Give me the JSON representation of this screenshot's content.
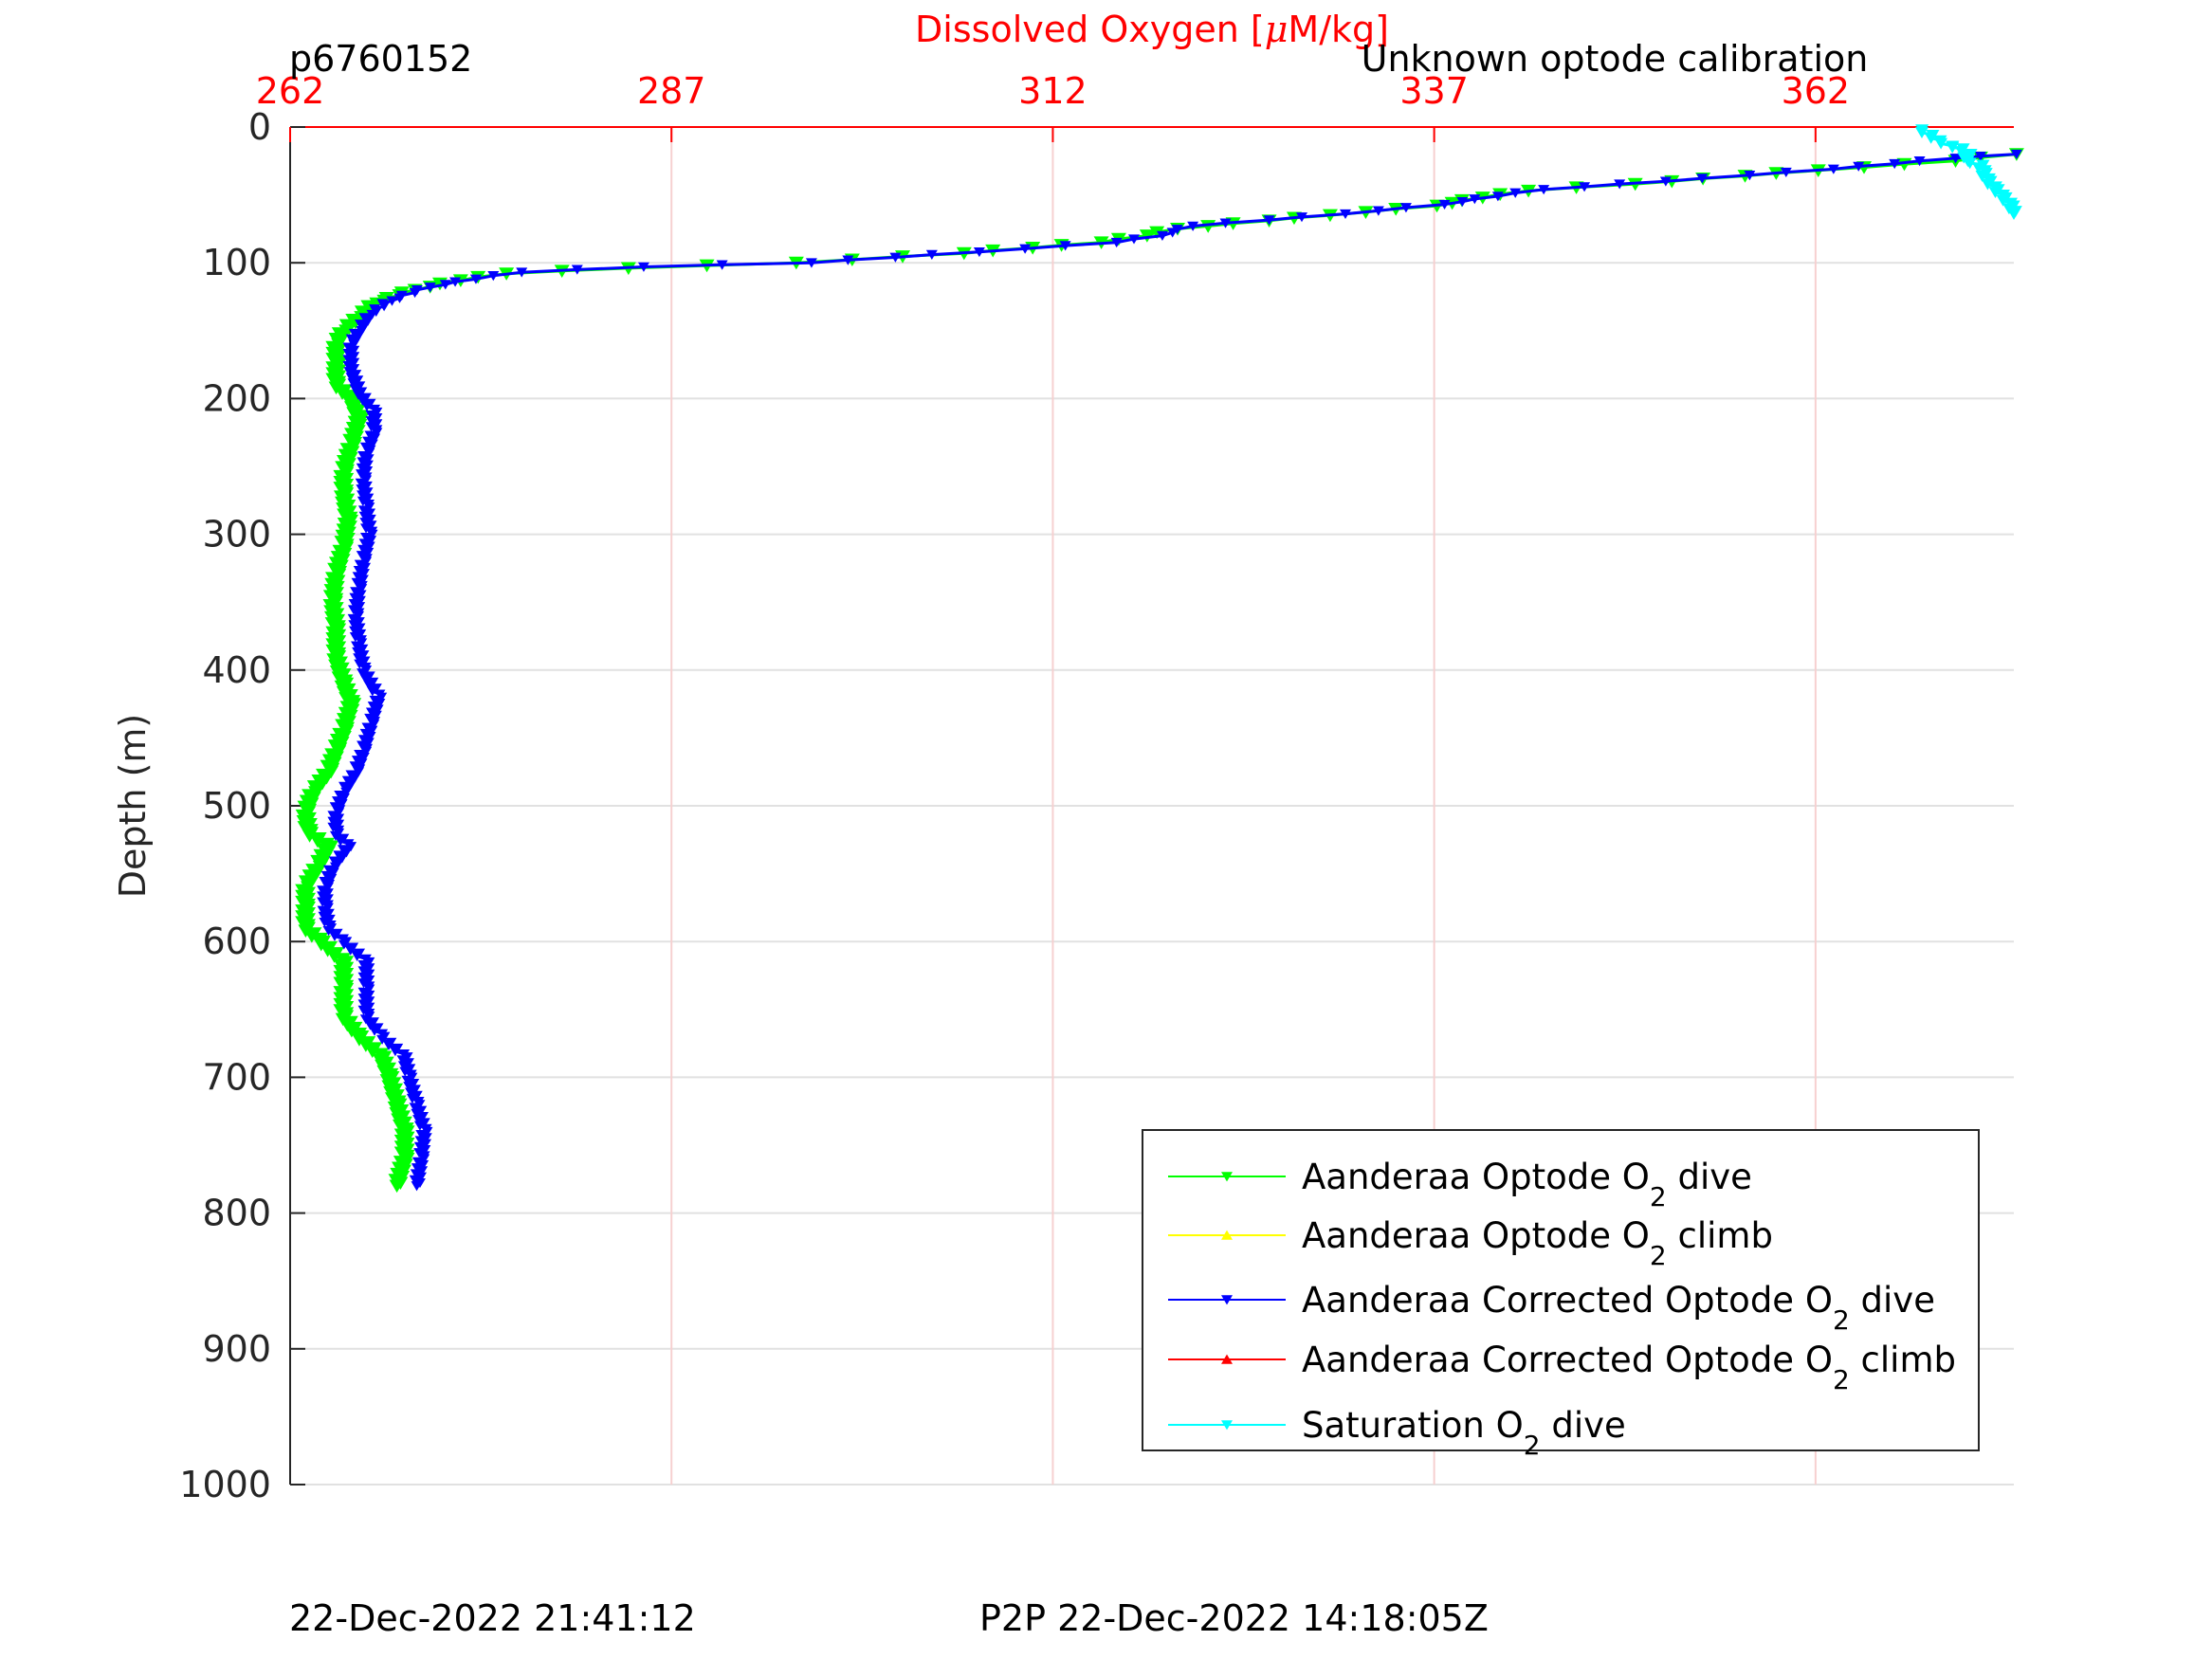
{
  "figure": {
    "profile_id": "p6760152",
    "calibration_note": "Unknown optode calibration",
    "footer_left": "22-Dec-2022 21:41:12",
    "footer_right": "P2P 22-Dec-2022 14:18:05Z"
  },
  "chart_data": {
    "type": "line",
    "title": "",
    "xlabel_prefix": "Dissolved Oxygen [",
    "xlabel_mu": "μ",
    "xlabel_suffix": "M/kg]",
    "ylabel": "Depth (m)",
    "xlim": [
      262,
      375
    ],
    "ylim": [
      0,
      1000
    ],
    "y_reversed": true,
    "x_axis_position": "top",
    "x_axis_color": "#ff0000",
    "xticks": [
      262,
      287,
      312,
      337,
      362
    ],
    "xtick_labels": [
      "262",
      "287",
      "312",
      "337",
      "362"
    ],
    "yticks": [
      0,
      100,
      200,
      300,
      400,
      500,
      600,
      700,
      800,
      900,
      1000
    ],
    "ytick_labels": [
      "0",
      "100",
      "200",
      "300",
      "400",
      "500",
      "600",
      "700",
      "800",
      "900",
      "1000"
    ],
    "grid": true,
    "legend_position": "bottom-right",
    "legend": [
      {
        "pre": "Aanderaa Optode O",
        "sub": "2",
        "post": " dive",
        "color": "#00ff00",
        "marker": "down"
      },
      {
        "pre": "Aanderaa Optode O",
        "sub": "2",
        "post": " climb",
        "color": "#ffff00",
        "marker": "up"
      },
      {
        "pre": "Aanderaa Corrected Optode O",
        "sub": "2",
        "post": " dive",
        "color": "#0000ff",
        "marker": "down"
      },
      {
        "pre": "Aanderaa Corrected Optode O",
        "sub": "2",
        "post": " climb",
        "color": "#ff0000",
        "marker": "up"
      },
      {
        "pre": "Saturation O",
        "sub": "2",
        "post": " dive",
        "color": "#00ffff",
        "marker": "down"
      }
    ],
    "series": [
      {
        "name": "Aanderaa Optode O2 dive",
        "color": "#00ff00",
        "marker": "down",
        "points": [
          [
            375,
            20
          ],
          [
            371,
            25
          ],
          [
            362,
            32
          ],
          [
            350,
            42
          ],
          [
            343,
            47
          ],
          [
            340,
            52
          ],
          [
            337,
            58
          ],
          [
            330,
            65
          ],
          [
            320,
            75
          ],
          [
            318,
            80
          ],
          [
            315,
            85
          ],
          [
            306,
            93
          ],
          [
            295,
            100
          ],
          [
            284,
            104
          ],
          [
            276,
            108
          ],
          [
            273,
            113
          ],
          [
            270,
            120
          ],
          [
            267.5,
            130
          ],
          [
            266.5,
            140
          ],
          [
            265.5,
            150
          ],
          [
            265,
            160
          ],
          [
            265,
            175
          ],
          [
            265,
            190
          ],
          [
            266,
            200
          ],
          [
            266.5,
            215
          ],
          [
            266,
            235
          ],
          [
            265.5,
            255
          ],
          [
            265.5,
            270
          ],
          [
            265.8,
            290
          ],
          [
            265.5,
            310
          ],
          [
            265,
            330
          ],
          [
            264.8,
            350
          ],
          [
            265,
            370
          ],
          [
            265,
            390
          ],
          [
            265.5,
            410
          ],
          [
            266,
            425
          ],
          [
            265.5,
            445
          ],
          [
            265,
            460
          ],
          [
            264.5,
            475
          ],
          [
            263.5,
            490
          ],
          [
            263,
            505
          ],
          [
            263.2,
            520
          ],
          [
            264.5,
            530
          ],
          [
            263.8,
            545
          ],
          [
            263,
            560
          ],
          [
            263,
            575
          ],
          [
            263,
            590
          ],
          [
            264,
            600
          ],
          [
            265.5,
            615
          ],
          [
            265.5,
            635
          ],
          [
            265.5,
            655
          ],
          [
            266.5,
            670
          ],
          [
            268,
            685
          ],
          [
            268.5,
            700
          ],
          [
            269,
            720
          ],
          [
            269.5,
            740
          ],
          [
            269.5,
            760
          ],
          [
            269,
            780
          ]
        ]
      },
      {
        "name": "Aanderaa Optode O2 climb",
        "color": "#ffff00",
        "marker": "up",
        "points": []
      },
      {
        "name": "Aanderaa Corrected Optode O2 dive",
        "color": "#0000ff",
        "marker": "down",
        "points": [
          [
            375,
            20
          ],
          [
            371,
            23
          ],
          [
            363,
            31
          ],
          [
            352,
            40
          ],
          [
            344,
            46
          ],
          [
            341,
            51
          ],
          [
            337.5,
            57
          ],
          [
            331,
            64
          ],
          [
            321,
            73
          ],
          [
            319,
            80
          ],
          [
            316,
            85
          ],
          [
            307,
            92
          ],
          [
            296,
            100
          ],
          [
            285,
            103
          ],
          [
            277,
            107
          ],
          [
            274,
            112
          ],
          [
            271,
            118
          ],
          [
            268.5,
            128
          ],
          [
            267.2,
            138
          ],
          [
            266.5,
            150
          ],
          [
            266,
            160
          ],
          [
            266,
            178
          ],
          [
            266.5,
            195
          ],
          [
            267.5,
            210
          ],
          [
            267.5,
            225
          ],
          [
            267,
            240
          ],
          [
            266.8,
            260
          ],
          [
            267,
            280
          ],
          [
            267.2,
            300
          ],
          [
            266.8,
            320
          ],
          [
            266.5,
            340
          ],
          [
            266.3,
            360
          ],
          [
            266.5,
            380
          ],
          [
            266.8,
            400
          ],
          [
            267.8,
            420
          ],
          [
            267.3,
            440
          ],
          [
            266.8,
            460
          ],
          [
            266.3,
            475
          ],
          [
            265.5,
            490
          ],
          [
            265,
            505
          ],
          [
            265,
            520
          ],
          [
            265.8,
            530
          ],
          [
            264.8,
            545
          ],
          [
            264.3,
            560
          ],
          [
            264.3,
            575
          ],
          [
            264.5,
            590
          ],
          [
            265.5,
            600
          ],
          [
            267,
            615
          ],
          [
            267,
            635
          ],
          [
            267,
            655
          ],
          [
            268,
            670
          ],
          [
            269.5,
            685
          ],
          [
            269.8,
            700
          ],
          [
            270.3,
            720
          ],
          [
            270.8,
            740
          ],
          [
            270.6,
            760
          ],
          [
            270.3,
            780
          ]
        ]
      },
      {
        "name": "Aanderaa Corrected Optode O2 climb",
        "color": "#ff0000",
        "marker": "up",
        "points": []
      },
      {
        "name": "Saturation O2 dive",
        "color": "#00ffff",
        "marker": "down",
        "points": [
          [
            368.8,
            2
          ],
          [
            369.5,
            6
          ],
          [
            370,
            10
          ],
          [
            370.8,
            14
          ],
          [
            371.5,
            16
          ],
          [
            372,
            20
          ],
          [
            371.8,
            25
          ],
          [
            372.8,
            28
          ],
          [
            373,
            34
          ],
          [
            373.3,
            40
          ],
          [
            373.8,
            46
          ],
          [
            374.3,
            52
          ],
          [
            374.8,
            58
          ],
          [
            375,
            64
          ]
        ]
      }
    ]
  }
}
